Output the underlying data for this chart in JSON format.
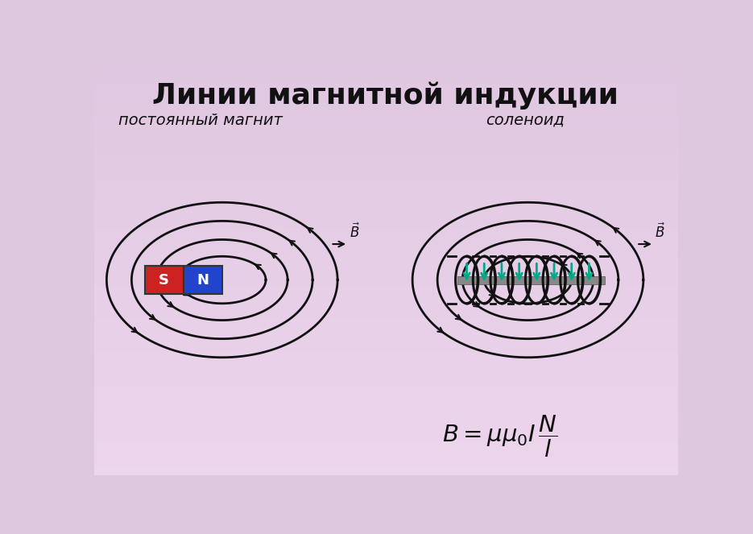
{
  "title": "Линии магнитной индукции",
  "subtitle_left": "постоянный магнит",
  "subtitle_right": "соленоид",
  "magnet_s_color": "#cc2222",
  "magnet_n_color": "#2244cc",
  "magnet_s_label": "S",
  "magnet_n_label": "N",
  "solenoid_core_color": "#888888",
  "solenoid_arrow_color": "#00aa88",
  "line_color": "#111111",
  "bg_top": "#e8c8e0",
  "bg_bottom": "#f8e8f4"
}
